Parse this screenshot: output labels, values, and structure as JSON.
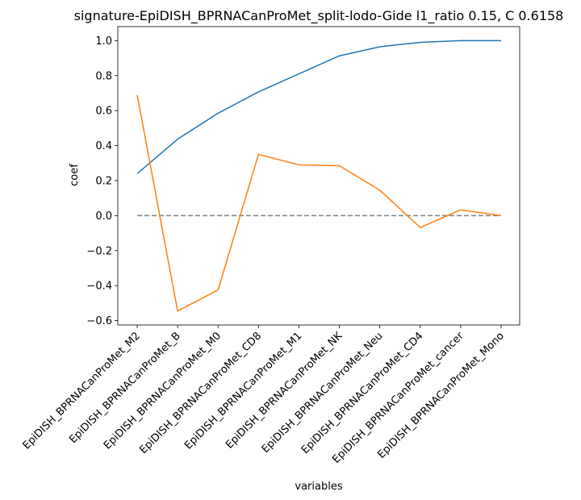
{
  "chart_data": {
    "type": "line",
    "title": "signature-EpiDISH_BPRNACanProMet_split-lodo-Gide l1_ratio 0.15, C 0.6158",
    "xlabel": "variables",
    "ylabel": "coef",
    "categories": [
      "EpiDISH_BPRNACanProMet_M2",
      "EpiDISH_BPRNACanProMet_B",
      "EpiDISH_BPRNACanProMet_M0",
      "EpiDISH_BPRNACanProMet_CD8",
      "EpiDISH_BPRNACanProMet_M1",
      "EpiDISH_BPRNACanProMet_NK",
      "EpiDISH_BPRNACanProMet_Neu",
      "EpiDISH_BPRNACanProMet_CD4",
      "EpiDISH_BPRNACanProMet_cancer",
      "EpiDISH_BPRNACanProMet_Mono"
    ],
    "ylim": [
      -0.625,
      1.08
    ],
    "yticks": [
      -0.6,
      -0.4,
      -0.2,
      0.0,
      0.2,
      0.4,
      0.6,
      0.8,
      1.0
    ],
    "ytick_labels": [
      "−0.6",
      "−0.4",
      "−0.2",
      "0.0",
      "0.2",
      "0.4",
      "0.6",
      "0.8",
      "1.0"
    ],
    "series": [
      {
        "color": "#1f77b4",
        "values": [
          0.24,
          0.437,
          0.585,
          0.707,
          0.81,
          0.913,
          0.965,
          0.99,
          1.0,
          1.0
        ]
      },
      {
        "color": "#ff7f0e",
        "values": [
          0.69,
          -0.545,
          -0.425,
          0.35,
          0.29,
          0.285,
          0.145,
          -0.068,
          0.033,
          0.0
        ]
      }
    ],
    "reference_line": {
      "y": 0.0,
      "style": "dashed",
      "color": "#808080"
    },
    "grid": false,
    "legend": "none"
  }
}
